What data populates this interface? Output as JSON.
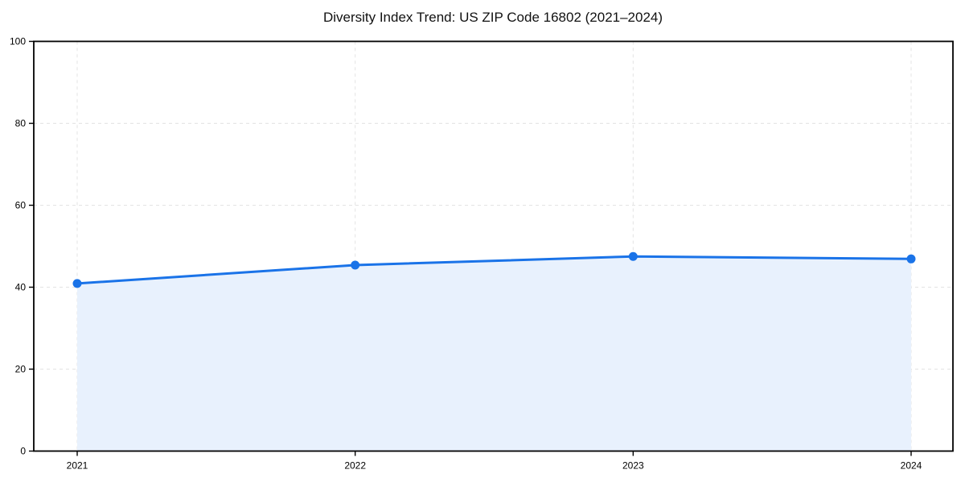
{
  "page": {
    "title": "Diversity Index Trend: US ZIP Code 16802 (2021–2024)"
  },
  "chart_data": {
    "type": "area",
    "title": "Diversity Index Trend: US ZIP Code 16802 (2021–2024)",
    "x": [
      "2021",
      "2022",
      "2023",
      "2024"
    ],
    "series": [
      {
        "name": "Diversity Index",
        "values": [
          40.9,
          45.4,
          47.5,
          46.9
        ]
      }
    ],
    "xlabel": "",
    "ylabel": "",
    "ylim": [
      0,
      100
    ],
    "yticks": [
      0,
      20,
      40,
      60,
      80,
      100
    ],
    "grid": true,
    "grid_style": "dashed",
    "legend_position": "none",
    "marker": "circle",
    "colors": {
      "line": "#1a73e8",
      "marker": "#1a73e8",
      "area_fill": "#e8f1fd",
      "grid": "#e3e3e3",
      "spine": "#000000",
      "tick_text": "#000000"
    }
  }
}
